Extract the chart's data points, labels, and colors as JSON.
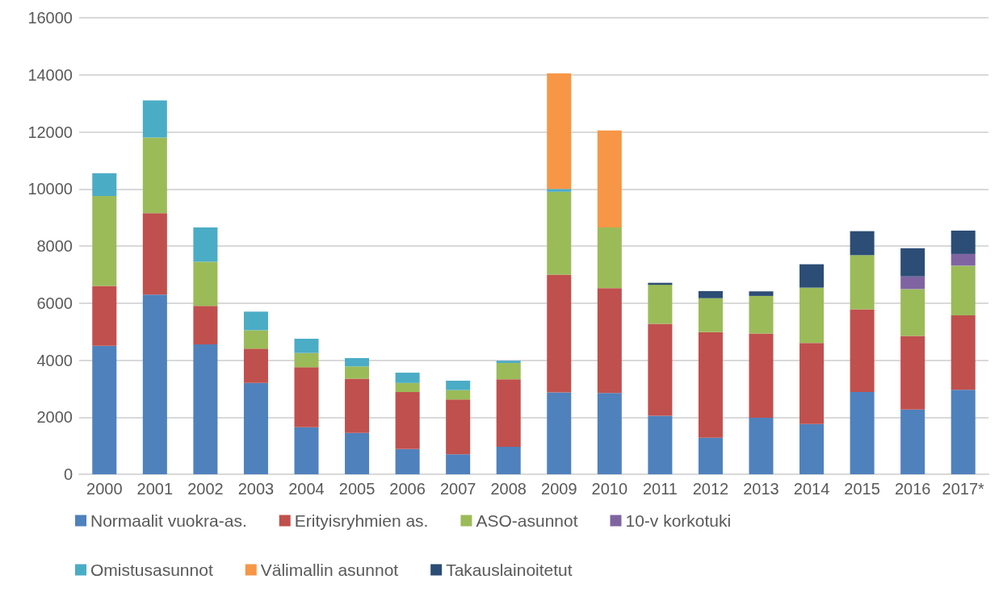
{
  "chart_data": {
    "type": "bar",
    "stacked": true,
    "categories": [
      "2000",
      "2001",
      "2002",
      "2003",
      "2004",
      "2005",
      "2006",
      "2007",
      "2008",
      "2009",
      "2010",
      "2011",
      "2012",
      "2013",
      "2014",
      "2015",
      "2016",
      "2017*"
    ],
    "series": [
      {
        "name": "Normaalit vuokra-as.",
        "color": "#4f81bd",
        "values": [
          4500,
          6300,
          4550,
          3200,
          1650,
          1450,
          880,
          700,
          960,
          2870,
          2850,
          2050,
          1280,
          1980,
          1760,
          2880,
          2270,
          2960
        ]
      },
      {
        "name": "Erityisryhmien as.",
        "color": "#c0504d",
        "values": [
          2100,
          2850,
          1350,
          1200,
          2100,
          1900,
          2000,
          1920,
          2370,
          4130,
          3670,
          3220,
          3700,
          2950,
          2840,
          2900,
          2580,
          2610
        ]
      },
      {
        "name": "ASO-asunnot",
        "color": "#9bbb59",
        "values": [
          3150,
          2650,
          1550,
          650,
          500,
          430,
          320,
          330,
          570,
          2900,
          2130,
          1370,
          1190,
          1320,
          1940,
          1900,
          1640,
          1740
        ]
      },
      {
        "name": "10-v korkotuki",
        "color": "#8064a2",
        "values": [
          null,
          null,
          null,
          null,
          null,
          null,
          null,
          null,
          null,
          null,
          null,
          null,
          null,
          null,
          null,
          null,
          440,
          410
        ]
      },
      {
        "name": "Omistusasunnot",
        "color": "#4bacc6",
        "values": [
          800,
          1300,
          1200,
          650,
          500,
          290,
          360,
          330,
          80,
          100,
          null,
          null,
          null,
          null,
          null,
          null,
          null,
          null
        ]
      },
      {
        "name": "Välimallin asunnot",
        "color": "#f79646",
        "values": [
          null,
          null,
          null,
          null,
          null,
          null,
          null,
          null,
          null,
          4050,
          3400,
          null,
          null,
          null,
          null,
          null,
          null,
          null
        ]
      },
      {
        "name": "Takauslainoitetut",
        "color": "#2c4d75",
        "values": [
          null,
          null,
          null,
          null,
          null,
          null,
          null,
          null,
          null,
          null,
          null,
          70,
          250,
          160,
          820,
          840,
          990,
          820
        ]
      }
    ],
    "ylim": [
      0,
      16000
    ],
    "yticks": [
      0,
      2000,
      4000,
      6000,
      8000,
      10000,
      12000,
      14000,
      16000
    ],
    "grid": "y",
    "legend": "bottom"
  }
}
